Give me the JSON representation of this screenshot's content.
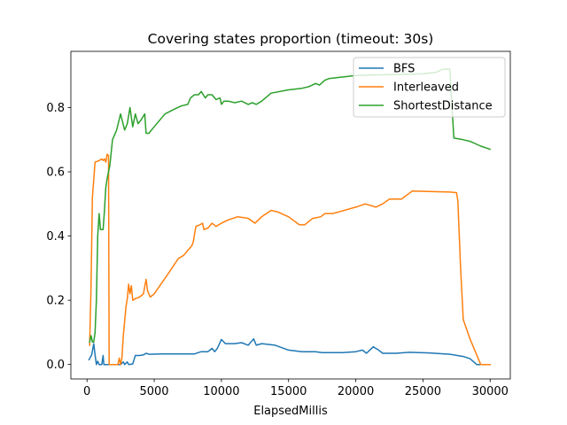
{
  "chart_data": {
    "type": "line",
    "title": "Covering states proportion (timeout: 30s)",
    "xlabel": "ElapsedMillis",
    "ylabel": "",
    "xlim": [
      -1200,
      31500
    ],
    "ylim": [
      -0.045,
      0.975
    ],
    "xticks": [
      0,
      5000,
      10000,
      15000,
      20000,
      25000,
      30000
    ],
    "yticks": [
      0.0,
      0.2,
      0.4,
      0.6,
      0.8
    ],
    "ytick_labels": [
      "0.0",
      "0.2",
      "0.4",
      "0.6",
      "0.8"
    ],
    "grid": false,
    "legend_position": "top-right",
    "series": [
      {
        "name": "BFS",
        "color": "#1f77b4",
        "points": [
          [
            150,
            0.015
          ],
          [
            350,
            0.03
          ],
          [
            500,
            0.065
          ],
          [
            600,
            0.03
          ],
          [
            700,
            0.0
          ],
          [
            800,
            0.01
          ],
          [
            900,
            0.0
          ],
          [
            1100,
            0.0
          ],
          [
            1200,
            0.028
          ],
          [
            1250,
            0.0
          ],
          [
            1600,
            0.0
          ],
          [
            2000,
            0.0
          ],
          [
            2500,
            0.0
          ],
          [
            2700,
            0.008
          ],
          [
            2800,
            0.0
          ],
          [
            3000,
            0.008
          ],
          [
            3100,
            0.0
          ],
          [
            3400,
            0.002
          ],
          [
            3600,
            0.028
          ],
          [
            3900,
            0.028
          ],
          [
            4200,
            0.03
          ],
          [
            4400,
            0.035
          ],
          [
            4600,
            0.032
          ],
          [
            5500,
            0.033
          ],
          [
            7000,
            0.033
          ],
          [
            8000,
            0.033
          ],
          [
            8500,
            0.04
          ],
          [
            9000,
            0.04
          ],
          [
            9300,
            0.05
          ],
          [
            9500,
            0.04
          ],
          [
            9700,
            0.05
          ],
          [
            10000,
            0.078
          ],
          [
            10300,
            0.065
          ],
          [
            11000,
            0.065
          ],
          [
            11500,
            0.068
          ],
          [
            12000,
            0.06
          ],
          [
            12400,
            0.08
          ],
          [
            12600,
            0.06
          ],
          [
            13000,
            0.065
          ],
          [
            14000,
            0.06
          ],
          [
            15000,
            0.045
          ],
          [
            16000,
            0.04
          ],
          [
            17000,
            0.04
          ],
          [
            17500,
            0.037
          ],
          [
            19000,
            0.037
          ],
          [
            20000,
            0.04
          ],
          [
            20500,
            0.045
          ],
          [
            20800,
            0.035
          ],
          [
            21300,
            0.055
          ],
          [
            21700,
            0.045
          ],
          [
            22000,
            0.035
          ],
          [
            23000,
            0.035
          ],
          [
            24000,
            0.038
          ],
          [
            25500,
            0.036
          ],
          [
            27000,
            0.032
          ],
          [
            28000,
            0.025
          ],
          [
            28500,
            0.018
          ],
          [
            29000,
            0.0
          ],
          [
            30000,
            0.0
          ]
        ]
      },
      {
        "name": "Interleaved",
        "color": "#ff7f0e",
        "points": [
          [
            200,
            0.06
          ],
          [
            300,
            0.25
          ],
          [
            400,
            0.52
          ],
          [
            600,
            0.63
          ],
          [
            900,
            0.635
          ],
          [
            1100,
            0.64
          ],
          [
            1200,
            0.635
          ],
          [
            1300,
            0.64
          ],
          [
            1400,
            0.63
          ],
          [
            1500,
            0.655
          ],
          [
            1600,
            0.65
          ],
          [
            1650,
            0.0
          ],
          [
            2000,
            0.0
          ],
          [
            2300,
            0.0
          ],
          [
            2400,
            0.02
          ],
          [
            2500,
            0.0
          ],
          [
            2600,
            0.02
          ],
          [
            2700,
            0.09
          ],
          [
            2900,
            0.18
          ],
          [
            3000,
            0.205
          ],
          [
            3100,
            0.25
          ],
          [
            3200,
            0.22
          ],
          [
            3300,
            0.245
          ],
          [
            3400,
            0.2
          ],
          [
            3600,
            0.205
          ],
          [
            3900,
            0.21
          ],
          [
            4200,
            0.22
          ],
          [
            4400,
            0.265
          ],
          [
            4500,
            0.23
          ],
          [
            4700,
            0.21
          ],
          [
            5000,
            0.22
          ],
          [
            6000,
            0.28
          ],
          [
            6800,
            0.33
          ],
          [
            7200,
            0.34
          ],
          [
            7800,
            0.37
          ],
          [
            7900,
            0.38
          ],
          [
            8100,
            0.43
          ],
          [
            8400,
            0.435
          ],
          [
            8600,
            0.44
          ],
          [
            8700,
            0.42
          ],
          [
            9000,
            0.425
          ],
          [
            9300,
            0.44
          ],
          [
            9600,
            0.43
          ],
          [
            10000,
            0.44
          ],
          [
            10500,
            0.45
          ],
          [
            11200,
            0.46
          ],
          [
            12000,
            0.455
          ],
          [
            12500,
            0.44
          ],
          [
            13000,
            0.46
          ],
          [
            13700,
            0.48
          ],
          [
            14200,
            0.475
          ],
          [
            15000,
            0.46
          ],
          [
            15800,
            0.435
          ],
          [
            16200,
            0.435
          ],
          [
            16800,
            0.455
          ],
          [
            17400,
            0.46
          ],
          [
            17700,
            0.47
          ],
          [
            18300,
            0.47
          ],
          [
            20000,
            0.49
          ],
          [
            20700,
            0.5
          ],
          [
            21500,
            0.49
          ],
          [
            22000,
            0.5
          ],
          [
            22500,
            0.515
          ],
          [
            23400,
            0.515
          ],
          [
            24200,
            0.54
          ],
          [
            26000,
            0.538
          ],
          [
            27000,
            0.537
          ],
          [
            27500,
            0.535
          ],
          [
            27600,
            0.51
          ],
          [
            27800,
            0.3
          ],
          [
            28000,
            0.14
          ],
          [
            28500,
            0.08
          ],
          [
            29300,
            0.0
          ],
          [
            30000,
            0.0
          ]
        ]
      },
      {
        "name": "ShortestDistance",
        "color": "#2ca02c",
        "points": [
          [
            200,
            0.07
          ],
          [
            300,
            0.09
          ],
          [
            400,
            0.07
          ],
          [
            500,
            0.07
          ],
          [
            600,
            0.1
          ],
          [
            700,
            0.2
          ],
          [
            800,
            0.4
          ],
          [
            900,
            0.47
          ],
          [
            1000,
            0.42
          ],
          [
            1200,
            0.42
          ],
          [
            1300,
            0.48
          ],
          [
            1400,
            0.55
          ],
          [
            1500,
            0.58
          ],
          [
            1700,
            0.62
          ],
          [
            1900,
            0.7
          ],
          [
            2200,
            0.73
          ],
          [
            2500,
            0.78
          ],
          [
            2800,
            0.73
          ],
          [
            3000,
            0.75
          ],
          [
            3200,
            0.8
          ],
          [
            3400,
            0.74
          ],
          [
            3600,
            0.78
          ],
          [
            3800,
            0.75
          ],
          [
            4000,
            0.76
          ],
          [
            4300,
            0.78
          ],
          [
            4400,
            0.72
          ],
          [
            4600,
            0.72
          ],
          [
            5000,
            0.74
          ],
          [
            5800,
            0.78
          ],
          [
            6500,
            0.795
          ],
          [
            7000,
            0.805
          ],
          [
            7500,
            0.81
          ],
          [
            7700,
            0.83
          ],
          [
            8000,
            0.84
          ],
          [
            8300,
            0.84
          ],
          [
            8500,
            0.85
          ],
          [
            8800,
            0.83
          ],
          [
            9000,
            0.84
          ],
          [
            9300,
            0.84
          ],
          [
            9600,
            0.825
          ],
          [
            9900,
            0.83
          ],
          [
            10000,
            0.81
          ],
          [
            10200,
            0.82
          ],
          [
            10500,
            0.82
          ],
          [
            11000,
            0.815
          ],
          [
            11500,
            0.82
          ],
          [
            12000,
            0.81
          ],
          [
            12300,
            0.815
          ],
          [
            12600,
            0.81
          ],
          [
            13000,
            0.82
          ],
          [
            13700,
            0.845
          ],
          [
            15000,
            0.855
          ],
          [
            16000,
            0.86
          ],
          [
            16500,
            0.865
          ],
          [
            17000,
            0.875
          ],
          [
            17300,
            0.87
          ],
          [
            17700,
            0.885
          ],
          [
            18000,
            0.89
          ],
          [
            19000,
            0.895
          ],
          [
            20000,
            0.9
          ],
          [
            25000,
            0.905
          ],
          [
            26000,
            0.91
          ],
          [
            26500,
            0.92
          ],
          [
            27000,
            0.92
          ],
          [
            27300,
            0.705
          ],
          [
            28000,
            0.7
          ],
          [
            28500,
            0.695
          ],
          [
            29300,
            0.68
          ],
          [
            30000,
            0.67
          ]
        ]
      }
    ]
  }
}
